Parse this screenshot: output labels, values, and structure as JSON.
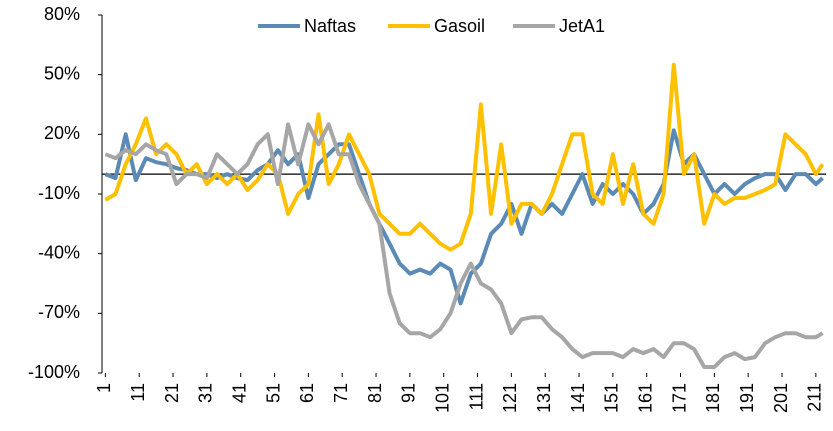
{
  "chart_data": {
    "type": "line",
    "x": [
      1,
      4,
      7,
      10,
      13,
      16,
      19,
      22,
      25,
      28,
      31,
      34,
      37,
      40,
      43,
      46,
      49,
      52,
      55,
      58,
      61,
      64,
      67,
      70,
      73,
      76,
      79,
      82,
      85,
      88,
      91,
      94,
      97,
      100,
      103,
      106,
      109,
      112,
      115,
      118,
      121,
      124,
      127,
      130,
      133,
      136,
      139,
      142,
      145,
      148,
      151,
      154,
      157,
      160,
      163,
      166,
      169,
      172,
      175,
      178,
      181,
      184,
      187,
      190,
      193,
      196,
      199,
      202,
      205,
      208,
      211,
      213
    ],
    "series": [
      {
        "name": "Naftas",
        "color": "#5a8ab5",
        "values": [
          0,
          -2,
          20,
          -3,
          8,
          6,
          5,
          3,
          2,
          0,
          0,
          -2,
          0,
          -2,
          -3,
          2,
          5,
          12,
          5,
          10,
          -12,
          5,
          10,
          15,
          15,
          0,
          -15,
          -25,
          -35,
          -45,
          -50,
          -48,
          -50,
          -45,
          -48,
          -65,
          -50,
          -45,
          -30,
          -25,
          -15,
          -30,
          -15,
          -20,
          -15,
          -20,
          -10,
          0,
          -15,
          -5,
          -10,
          -5,
          -10,
          -20,
          -15,
          -5,
          22,
          5,
          10,
          0,
          -10,
          -5,
          -10,
          -5,
          -2,
          0,
          0,
          -8,
          0,
          0,
          -5,
          -2
        ]
      },
      {
        "name": "Gasoil",
        "color": "#ffc000",
        "values": [
          -13,
          -10,
          5,
          15,
          28,
          10,
          15,
          10,
          0,
          5,
          -5,
          0,
          -5,
          0,
          -8,
          -3,
          5,
          0,
          -20,
          -10,
          -5,
          30,
          -5,
          5,
          20,
          10,
          0,
          -20,
          -25,
          -30,
          -30,
          -25,
          -30,
          -35,
          -38,
          -35,
          -20,
          35,
          -20,
          15,
          -25,
          -15,
          -15,
          -20,
          -10,
          5,
          20,
          20,
          -10,
          -15,
          10,
          -15,
          5,
          -20,
          -25,
          -10,
          55,
          0,
          10,
          -25,
          -10,
          -15,
          -12,
          -12,
          -10,
          -8,
          -5,
          20,
          15,
          10,
          0,
          5
        ]
      },
      {
        "name": "JetA1",
        "color": "#a6a6a6",
        "values": [
          10,
          8,
          12,
          10,
          15,
          12,
          10,
          -5,
          0,
          0,
          -2,
          10,
          5,
          0,
          5,
          15,
          20,
          -5,
          25,
          5,
          25,
          15,
          25,
          10,
          10,
          -5,
          -15,
          -25,
          -60,
          -75,
          -80,
          -80,
          -82,
          -78,
          -70,
          -55,
          -45,
          -55,
          -58,
          -65,
          -80,
          -73,
          -72,
          -72,
          -78,
          -82,
          -88,
          -92,
          -90,
          -90,
          -90,
          -92,
          -88,
          -90,
          -88,
          -92,
          -85,
          -85,
          -88,
          -97,
          -97,
          -92,
          -90,
          -93,
          -92,
          -85,
          -82,
          -80,
          -80,
          -82,
          -82,
          -80
        ]
      }
    ],
    "xlim": [
      0,
      214
    ],
    "xticks": [
      1,
      11,
      21,
      31,
      41,
      51,
      61,
      71,
      81,
      91,
      101,
      111,
      121,
      131,
      141,
      151,
      161,
      171,
      181,
      191,
      201,
      211
    ],
    "ylim": [
      -100,
      80
    ],
    "yticks": [
      {
        "value": -100,
        "label": "-100%"
      },
      {
        "value": -70,
        "label": "-70%"
      },
      {
        "value": -40,
        "label": "-40%"
      },
      {
        "value": -10,
        "label": "-10%"
      },
      {
        "value": 20,
        "label": "20%"
      },
      {
        "value": 50,
        "label": "50%"
      },
      {
        "value": 80,
        "label": "80%"
      }
    ],
    "legend": "top"
  }
}
